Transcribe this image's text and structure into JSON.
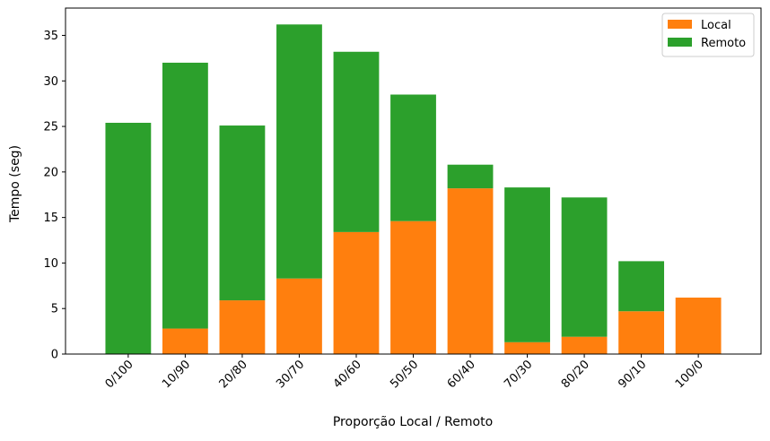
{
  "chart_data": {
    "type": "bar",
    "stacked": true,
    "title": "",
    "xlabel": "Proporção Local / Remoto",
    "ylabel": "Tempo (seg)",
    "ylim": [
      0,
      38
    ],
    "yticks": [
      "0",
      "5",
      "10",
      "15",
      "20",
      "25",
      "30",
      "35"
    ],
    "categories": [
      "0/100",
      "10/90",
      "20/80",
      "30/70",
      "40/60",
      "50/50",
      "60/40",
      "70/30",
      "80/20",
      "90/10",
      "100/0"
    ],
    "series": [
      {
        "name": "Local",
        "color": "#ff7f0e",
        "values": [
          0,
          2.8,
          5.9,
          8.3,
          13.4,
          14.6,
          18.2,
          1.3,
          1.9,
          4.7,
          6.2
        ]
      },
      {
        "name": "Remoto",
        "color": "#2ca02c",
        "values": [
          25.4,
          29.2,
          19.2,
          27.9,
          19.8,
          13.9,
          2.6,
          17.0,
          15.3,
          5.5,
          0
        ]
      }
    ],
    "legend_position": "top-right",
    "grid": false
  }
}
